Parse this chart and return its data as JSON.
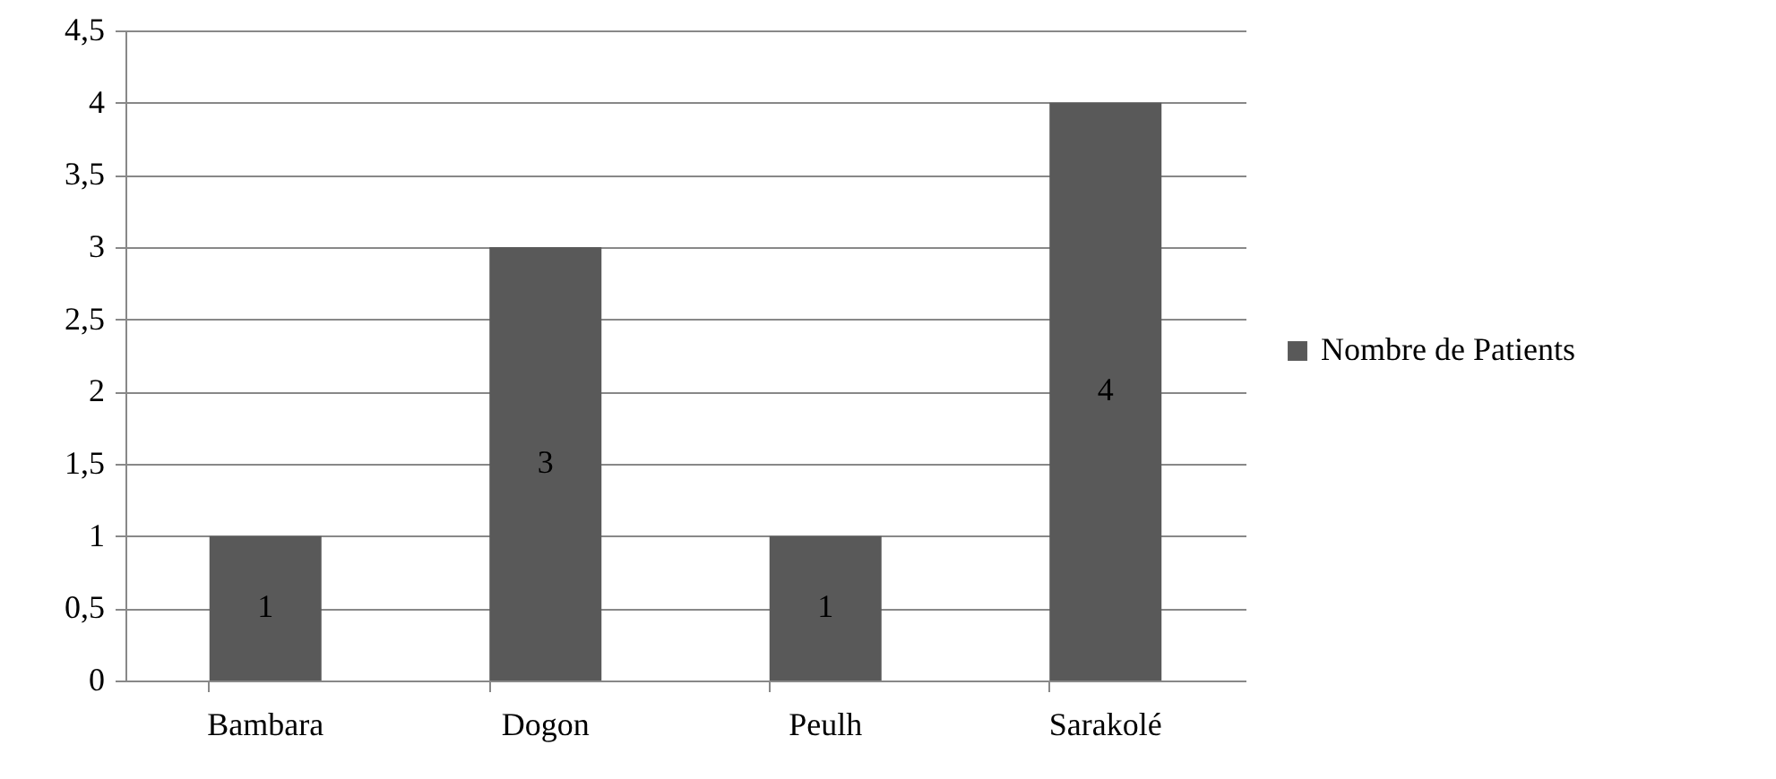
{
  "chart_data": {
    "type": "bar",
    "categories": [
      "Bambara",
      "Dogon",
      "Peulh",
      "Sarakolé"
    ],
    "series": [
      {
        "name": "Nombre de Patients",
        "color": "#595959",
        "values": [
          1,
          3,
          1,
          4
        ]
      }
    ],
    "ylim": [
      0,
      4.5
    ],
    "yticks": [
      0,
      {
        "value": 0.5,
        "label": "0,5"
      },
      1,
      {
        "value": 1.5,
        "label": "1,5"
      },
      2,
      {
        "value": 2.5,
        "label": "2,5"
      },
      3,
      {
        "value": 3.5,
        "label": "3,5"
      },
      4,
      {
        "value": 4.5,
        "label": "4,5"
      }
    ],
    "grid": "y",
    "legend": "right",
    "data_labels": true
  }
}
